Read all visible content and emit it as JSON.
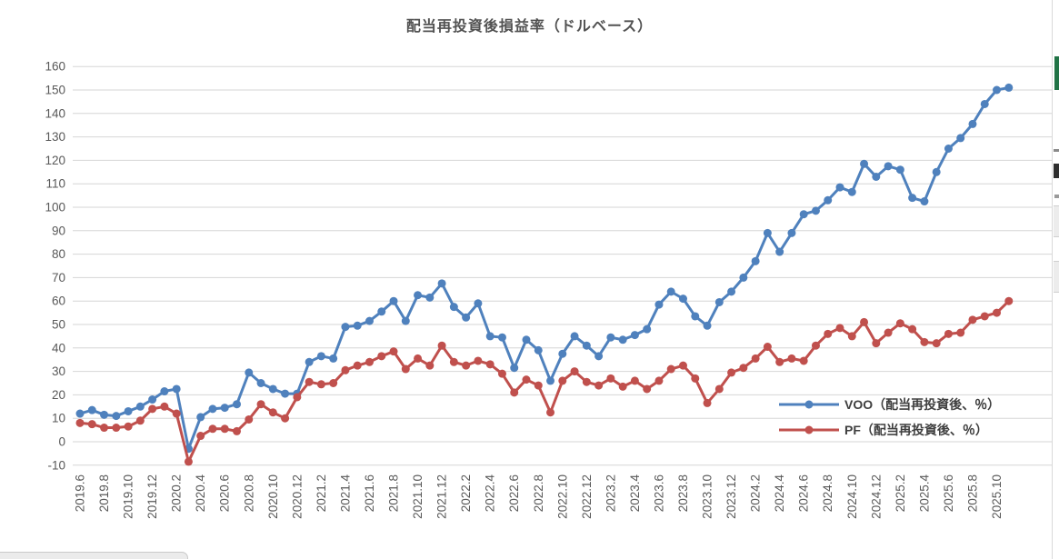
{
  "chart_data": {
    "type": "line",
    "title": "配当再投資後損益率（ドルベース）",
    "xlabel": "",
    "ylabel": "",
    "ylim": [
      -10,
      160
    ],
    "ytick_step": 10,
    "xtick_every": 2,
    "grid": true,
    "legend_position": "inside-right",
    "categories": [
      "2019.6",
      "2019.7",
      "2019.8",
      "2019.9",
      "2019.10",
      "2019.11",
      "2019.12",
      "2020.1",
      "2020.2",
      "2020.3",
      "2020.4",
      "2020.5",
      "2020.6",
      "2020.7",
      "2020.8",
      "2020.9",
      "2020.10",
      "2020.11",
      "2020.12",
      "2021.1",
      "2021.2",
      "2021.3",
      "2021.4",
      "2021.5",
      "2021.6",
      "2021.7",
      "2021.8",
      "2021.9",
      "2021.10",
      "2021.11",
      "2021.12",
      "2022.1",
      "2022.2",
      "2022.3",
      "2022.4",
      "2022.5",
      "2022.6",
      "2022.7",
      "2022.8",
      "2022.9",
      "2022.10",
      "2022.11",
      "2022.12",
      "2023.1",
      "2023.2",
      "2023.3",
      "2023.4",
      "2023.5",
      "2023.6",
      "2023.7",
      "2023.8",
      "2023.9",
      "2023.10",
      "2023.11",
      "2023.12",
      "2024.1",
      "2024.2",
      "2024.3",
      "2024.4",
      "2024.5",
      "2024.6",
      "2024.7",
      "2024.8",
      "2024.9",
      "2024.10",
      "2024.11",
      "2024.12",
      "2025.1",
      "2025.2",
      "2025.3",
      "2025.4",
      "2025.5",
      "2025.6",
      "2025.7",
      "2025.8",
      "2025.9",
      "2025.10",
      "2025.11"
    ],
    "series": [
      {
        "name": "VOO（配当再投資後、％）",
        "color": "#4F81BD",
        "values": [
          12,
          13.5,
          11.5,
          11,
          13,
          15,
          18,
          21.5,
          22.5,
          -3,
          10.5,
          14,
          14.5,
          16,
          29.5,
          25,
          22.5,
          20.5,
          20.5,
          34,
          36.5,
          35.5,
          49,
          49.5,
          51.5,
          55.5,
          60,
          51.5,
          62.5,
          61.5,
          67.5,
          57.5,
          53,
          59,
          45,
          44.5,
          31.5,
          43.5,
          39,
          26,
          37.5,
          45,
          41,
          36.5,
          44.5,
          43.5,
          45.5,
          48,
          58.5,
          64,
          61,
          53.5,
          49.5,
          59.5,
          64,
          70,
          77,
          89,
          81,
          89,
          97,
          98.5,
          103,
          108.5,
          106.5,
          118.5,
          113,
          117.5,
          116,
          104,
          102.5,
          115,
          125,
          129.5,
          135.5,
          144,
          150,
          151
        ]
      },
      {
        "name": "PF（配当再投資後、％）",
        "color": "#C0504D",
        "values": [
          8,
          7.5,
          6,
          6,
          6.5,
          9,
          14,
          15,
          12,
          -8.5,
          2.5,
          5.5,
          5.5,
          4.5,
          9.5,
          16,
          12.5,
          10,
          19,
          25.5,
          24.5,
          25,
          30.5,
          32.5,
          34,
          36.5,
          38.5,
          31,
          35.5,
          32.5,
          41,
          34,
          32.5,
          34.5,
          33,
          29,
          21,
          26.5,
          24,
          12.5,
          26,
          30,
          25.5,
          24,
          27,
          23.5,
          26,
          22.5,
          26,
          31,
          32.5,
          27,
          16.5,
          22.5,
          29.5,
          31.5,
          35.5,
          40.5,
          34,
          35.5,
          34.5,
          41,
          46,
          48.5,
          45,
          51,
          42,
          46.5,
          50.5,
          48,
          42.5,
          42,
          46,
          46.5,
          52,
          53.5,
          55,
          60
        ]
      }
    ]
  }
}
